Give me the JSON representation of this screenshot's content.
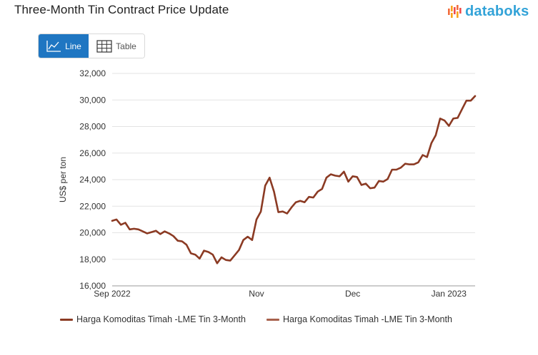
{
  "header": {
    "title": "Three-Month Tin Contract Price Update",
    "brand": "databoks"
  },
  "toggle": {
    "line_label": "Line",
    "table_label": "Table"
  },
  "colors": {
    "series_dark": "#8b3a23",
    "series_light": "#a8614c",
    "brand": "#33a3d8",
    "accent": "#1f76c2"
  },
  "chart_data": {
    "type": "line",
    "title": "Three-Month Tin Contract Price Update",
    "xlabel": "",
    "ylabel": "US$ per ton",
    "ylim": [
      16000,
      32000
    ],
    "yticks": [
      16000,
      18000,
      20000,
      22000,
      24000,
      26000,
      28000,
      30000,
      32000
    ],
    "ytick_labels": [
      "16,000",
      "18,000",
      "20,000",
      "22,000",
      "24,000",
      "26,000",
      "28,000",
      "30,000",
      "32,000"
    ],
    "xtick_labels": [
      {
        "label": "Sep 2022",
        "index": 0
      },
      {
        "label": "Nov",
        "index": 33
      },
      {
        "label": "Dec",
        "index": 55
      },
      {
        "label": "Jan 2023",
        "index": 77
      }
    ],
    "grid": true,
    "legend_position": "bottom",
    "series": [
      {
        "name": "Harga Komoditas Timah -LME Tin 3-Month",
        "color": "#8b3a23",
        "values": [
          20900,
          21000,
          20600,
          20750,
          20250,
          20300,
          20250,
          20100,
          19950,
          20050,
          20150,
          19900,
          20100,
          19950,
          19750,
          19400,
          19350,
          19100,
          18450,
          18350,
          18050,
          18650,
          18550,
          18350,
          17700,
          18150,
          17950,
          17900,
          18300,
          18700,
          19450,
          19700,
          19450,
          21000,
          21600,
          23550,
          24150,
          23100,
          21550,
          21600,
          21450,
          21900,
          22300,
          22400,
          22300,
          22700,
          22650,
          23100,
          23300,
          24150,
          24400,
          24300,
          24250,
          24600,
          23850,
          24250,
          24200,
          23600,
          23700,
          23350,
          23400,
          23900,
          23850,
          24050,
          24750,
          24750,
          24900,
          25200,
          25150,
          25150,
          25300,
          25850,
          25700,
          26750,
          27350,
          28600,
          28450,
          28050,
          28600,
          28650,
          29300,
          29950,
          29950,
          30300
        ]
      },
      {
        "name": "Harga Komoditas Timah -LME Tin 3-Month",
        "color": "#a8614c",
        "values": []
      }
    ]
  }
}
